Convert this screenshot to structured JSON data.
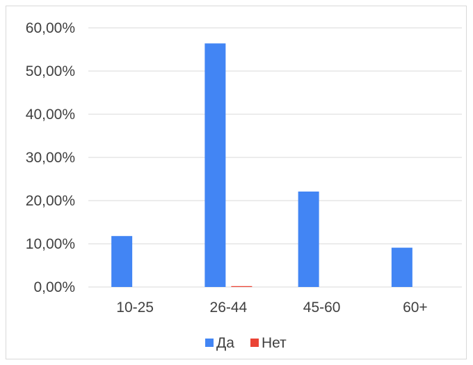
{
  "chart_data": {
    "type": "bar",
    "categories": [
      "10-25",
      "26-44",
      "45-60",
      "60+"
    ],
    "series": [
      {
        "name": "Да",
        "color": "#4285F4",
        "values": [
          11.8,
          56.4,
          22.1,
          9.1
        ]
      },
      {
        "name": "Нет",
        "color": "#EA4335",
        "values": [
          0.0,
          0.2,
          0.0,
          0.0
        ]
      }
    ],
    "y_ticks": [
      "0,00%",
      "10,00%",
      "20,00%",
      "30,00%",
      "40,00%",
      "50,00%",
      "60,00%"
    ],
    "ylim": [
      0,
      60
    ],
    "grid": true,
    "legend_position": "bottom"
  }
}
